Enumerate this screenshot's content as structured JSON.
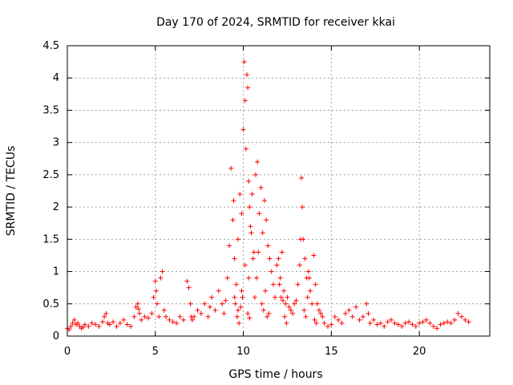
{
  "chart_data": {
    "type": "scatter",
    "title": "Day 170 of 2024, SRMTID for receiver kkai",
    "xlabel": "GPS time / hours",
    "ylabel": "SRMTID / TECUs",
    "xlim": [
      0,
      24
    ],
    "ylim": [
      0,
      4.5
    ],
    "xticks": [
      "0",
      "5",
      "10",
      "15",
      "20"
    ],
    "yticks": [
      "0",
      "0.5",
      "1",
      "1.5",
      "2",
      "2.5",
      "3",
      "3.5",
      "4",
      "4.5"
    ],
    "grid": true,
    "marker": "+",
    "color": "#ff0000",
    "series": [
      {
        "name": "kkai",
        "x": [
          0.0,
          0.1,
          0.2,
          0.3,
          0.4,
          0.5,
          0.6,
          0.7,
          0.8,
          0.9,
          1.0,
          1.2,
          1.4,
          1.6,
          1.8,
          2.0,
          2.1,
          2.2,
          2.3,
          2.4,
          2.6,
          2.8,
          3.0,
          3.2,
          3.4,
          3.6,
          3.8,
          3.9,
          4.0,
          4.05,
          4.1,
          4.2,
          4.4,
          4.6,
          4.8,
          4.9,
          5.0,
          5.05,
          5.1,
          5.2,
          5.3,
          5.4,
          5.5,
          5.6,
          5.8,
          6.0,
          6.2,
          6.4,
          6.6,
          6.8,
          6.9,
          7.0,
          7.05,
          7.1,
          7.2,
          7.4,
          7.6,
          7.8,
          8.0,
          8.1,
          8.2,
          8.4,
          8.6,
          8.8,
          8.9,
          9.0,
          9.1,
          9.2,
          9.3,
          9.4,
          9.5,
          9.6,
          9.7,
          9.8,
          9.9,
          10.0,
          10.05,
          10.1,
          10.15,
          10.2,
          10.25,
          10.3,
          10.35,
          10.4,
          10.5,
          10.6,
          10.7,
          10.8,
          10.9,
          11.0,
          11.1,
          11.2,
          11.3,
          11.4,
          11.5,
          11.6,
          11.7,
          11.8,
          11.9,
          12.0,
          12.1,
          12.2,
          12.3,
          12.4,
          12.5,
          12.6,
          12.7,
          12.8,
          12.9,
          13.0,
          13.1,
          13.2,
          13.3,
          13.35,
          13.4,
          13.5,
          13.6,
          13.7,
          13.8,
          13.9,
          14.0,
          14.1,
          14.2,
          14.3,
          14.4,
          14.5,
          14.6,
          14.8,
          15.0,
          15.2,
          15.4,
          15.6,
          15.8,
          16.0,
          16.2,
          16.4,
          16.6,
          16.8,
          17.0,
          17.1,
          17.2,
          17.4,
          17.6,
          17.8,
          18.0,
          18.2,
          18.4,
          18.6,
          18.8,
          19.0,
          19.2,
          19.4,
          19.6,
          19.8,
          20.0,
          20.2,
          20.4,
          20.6,
          20.8,
          21.0,
          21.2,
          21.4,
          21.6,
          21.8,
          22.0,
          22.2,
          22.4,
          22.6,
          22.8,
          9.5,
          9.7,
          9.9,
          10.1,
          10.3,
          10.45,
          10.55,
          10.65,
          10.75,
          10.85,
          11.05,
          11.15,
          11.25,
          11.35,
          11.45,
          12.05,
          12.15,
          12.25,
          12.35,
          12.45,
          13.25,
          13.45,
          13.55,
          13.65,
          13.75,
          14.05,
          14.15,
          9.45,
          9.55,
          9.65,
          9.75,
          9.85,
          9.95,
          10.25,
          10.35
        ],
        "y": [
          0.12,
          0.1,
          0.15,
          0.2,
          0.25,
          0.18,
          0.2,
          0.15,
          0.12,
          0.14,
          0.18,
          0.15,
          0.2,
          0.18,
          0.15,
          0.22,
          0.3,
          0.35,
          0.2,
          0.18,
          0.22,
          0.15,
          0.2,
          0.25,
          0.18,
          0.15,
          0.3,
          0.45,
          0.5,
          0.42,
          0.35,
          0.25,
          0.3,
          0.28,
          0.35,
          0.6,
          0.85,
          0.7,
          0.5,
          0.3,
          0.9,
          1.0,
          0.4,
          0.3,
          0.25,
          0.22,
          0.2,
          0.3,
          0.25,
          0.85,
          0.75,
          0.5,
          0.3,
          0.25,
          0.3,
          0.4,
          0.35,
          0.5,
          0.3,
          0.45,
          0.6,
          0.4,
          0.7,
          0.5,
          0.35,
          0.55,
          0.9,
          1.4,
          2.6,
          1.8,
          1.2,
          0.8,
          1.5,
          2.2,
          1.9,
          3.2,
          4.25,
          3.65,
          2.9,
          4.05,
          3.85,
          2.4,
          2.0,
          1.7,
          2.2,
          1.3,
          2.5,
          2.7,
          1.9,
          2.3,
          1.6,
          2.1,
          1.8,
          1.4,
          1.2,
          1.0,
          0.8,
          0.6,
          1.1,
          1.2,
          0.9,
          1.3,
          0.7,
          0.5,
          0.6,
          0.45,
          0.4,
          0.35,
          0.5,
          0.55,
          0.8,
          1.1,
          2.45,
          2.0,
          1.5,
          1.2,
          0.9,
          1.0,
          0.7,
          0.5,
          1.25,
          0.8,
          0.5,
          0.4,
          0.35,
          0.3,
          0.2,
          0.15,
          0.18,
          0.3,
          0.25,
          0.2,
          0.35,
          0.4,
          0.3,
          0.45,
          0.25,
          0.3,
          0.5,
          0.35,
          0.2,
          0.25,
          0.18,
          0.2,
          0.15,
          0.22,
          0.25,
          0.2,
          0.18,
          0.15,
          0.2,
          0.22,
          0.18,
          0.15,
          0.2,
          0.22,
          0.25,
          0.2,
          0.15,
          0.12,
          0.18,
          0.2,
          0.22,
          0.2,
          0.25,
          0.35,
          0.3,
          0.25,
          0.22,
          0.6,
          0.4,
          0.7,
          1.1,
          0.9,
          1.6,
          1.2,
          0.6,
          0.9,
          1.3,
          0.5,
          0.4,
          0.7,
          0.3,
          0.35,
          0.8,
          0.6,
          0.55,
          0.3,
          0.2,
          1.5,
          0.4,
          0.3,
          0.6,
          0.9,
          0.25,
          0.2,
          2.1,
          0.5,
          0.3,
          0.2,
          0.45,
          0.6,
          0.35,
          0.28
        ]
      }
    ]
  }
}
